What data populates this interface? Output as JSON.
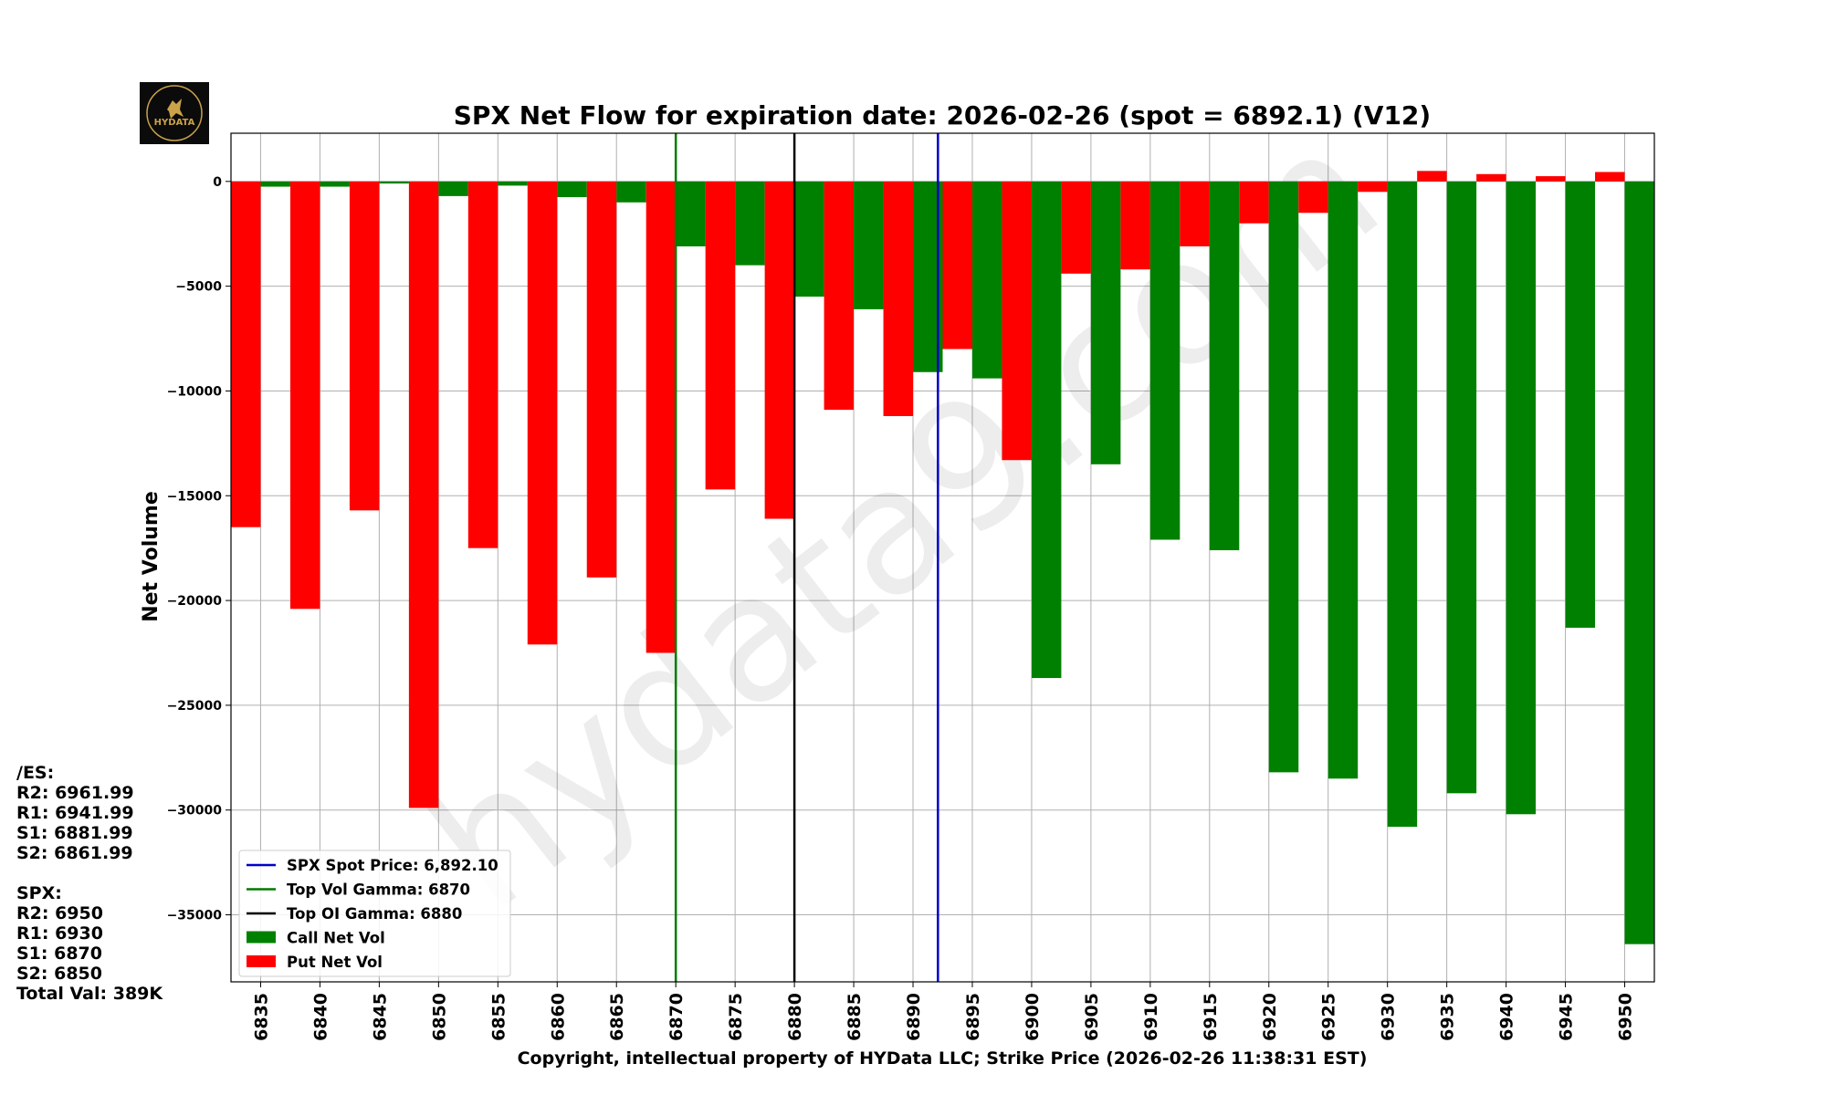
{
  "chart_data": {
    "type": "bar",
    "title": "SPX Net Flow for expiration date: 2026-02-26 (spot = 6892.1) (V12)",
    "xlabel": "Copyright, intellectual property of HYData LLC; Strike Price (2026-02-26 11:38:31 EST)",
    "ylabel": "Net Volume",
    "ylim": [
      -38200,
      2300
    ],
    "yticks": [
      0,
      -5000,
      -10000,
      -15000,
      -20000,
      -25000,
      -30000,
      -35000
    ],
    "xlim": [
      6832.5,
      6952.5
    ],
    "categories": [
      6835,
      6840,
      6845,
      6850,
      6855,
      6860,
      6865,
      6870,
      6875,
      6880,
      6885,
      6890,
      6895,
      6900,
      6905,
      6910,
      6915,
      6920,
      6925,
      6930,
      6935,
      6940,
      6945,
      6950
    ],
    "series": [
      {
        "name": "Put Net Vol",
        "color": "#ff0000",
        "values": [
          -16500,
          -20400,
          -15700,
          -29900,
          -17500,
          -22100,
          -18900,
          -22500,
          -14700,
          -16100,
          -10900,
          -11200,
          -8000,
          -13300,
          -4400,
          -4200,
          -3100,
          -2000,
          -1500,
          -500,
          500,
          350,
          250,
          450
        ]
      },
      {
        "name": "Call Net Vol",
        "color": "#008000",
        "values": [
          -250,
          -250,
          -100,
          -700,
          -200,
          -750,
          -1000,
          -3100,
          -4000,
          -5500,
          -6100,
          -9100,
          -9400,
          -23700,
          -13500,
          -17100,
          -17600,
          -28200,
          -28500,
          -30800,
          -29200,
          -30200,
          -21300,
          -36400
        ]
      }
    ],
    "lines": [
      {
        "name": "SPX Spot Price: 6,892.10",
        "x": 6892.1,
        "color": "#0000cc"
      },
      {
        "name": "Top Vol Gamma: 6870",
        "x": 6870,
        "color": "#007a00"
      },
      {
        "name": "Top OI Gamma: 6880",
        "x": 6880,
        "color": "#000000"
      }
    ],
    "legend_position": "lower-left",
    "legend": [
      "SPX Spot Price: 6,892.10",
      "Top Vol Gamma: 6870",
      "Top OI Gamma: 6880",
      "Call Net Vol",
      "Put Net Vol"
    ],
    "grid": true
  },
  "watermark": "hydata9.com",
  "logo": {
    "text": "HYDATA",
    "colors": {
      "bg": "#0b0b0b",
      "gold": "#c9a24a"
    }
  },
  "levels": {
    "es_header": "/ES:",
    "es": [
      "R2: 6961.99",
      "R1: 6941.99",
      "S1: 6881.99",
      "S2: 6861.99"
    ],
    "spx_header": "SPX:",
    "spx": [
      "R2: 6950",
      "R1: 6930",
      "S1: 6870",
      "S2: 6850"
    ],
    "total": "Total Val: 389K"
  }
}
